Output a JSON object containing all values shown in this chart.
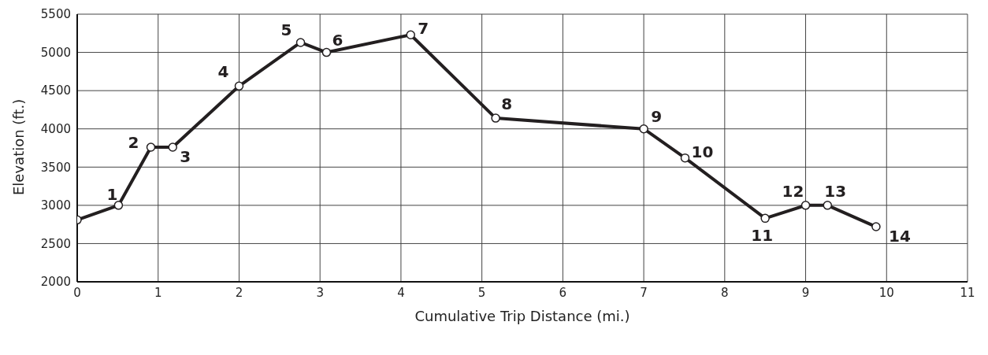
{
  "chart_data": {
    "type": "line",
    "xlabel": "Cumulative Trip Distance (mi.)",
    "ylabel": "Elevation (ft.)",
    "x": [
      0,
      0.51,
      0.91,
      1.18,
      2.0,
      2.76,
      3.08,
      4.12,
      5.17,
      7.0,
      7.51,
      8.5,
      9.0,
      9.27,
      9.87
    ],
    "series": [
      {
        "color": "#231f20",
        "values": [
          2810,
          3000,
          3760,
          3760,
          4560,
          5130,
          5000,
          5230,
          4140,
          4000,
          3620,
          2830,
          3000,
          3000,
          2720
        ]
      }
    ],
    "xlim": [
      0,
      11
    ],
    "xticks": [
      0,
      1,
      2,
      3,
      4,
      5,
      6,
      7,
      8,
      9,
      10,
      11
    ],
    "ylim": [
      2000,
      5500
    ],
    "yticks": [
      2000,
      2500,
      3000,
      3500,
      4000,
      4500,
      5000,
      5500
    ],
    "grid": true,
    "marker": "circle",
    "line_style": "solid",
    "legend": false,
    "annotations": [
      {
        "text": "1",
        "x": 0.51,
        "y": 3000
      },
      {
        "text": "2",
        "x": 0.91,
        "y": 3760
      },
      {
        "text": "3",
        "x": 1.18,
        "y": 3760
      },
      {
        "text": "4",
        "x": 2.0,
        "y": 4560
      },
      {
        "text": "5",
        "x": 2.76,
        "y": 5130
      },
      {
        "text": "6",
        "x": 3.08,
        "y": 5000
      },
      {
        "text": "7",
        "x": 4.12,
        "y": 5230
      },
      {
        "text": "8",
        "x": 5.17,
        "y": 4140
      },
      {
        "text": "9",
        "x": 7.0,
        "y": 4000
      },
      {
        "text": "10",
        "x": 7.51,
        "y": 3620
      },
      {
        "text": "11",
        "x": 8.5,
        "y": 2830
      },
      {
        "text": "12",
        "x": 9.0,
        "y": 3000
      },
      {
        "text": "13",
        "x": 9.27,
        "y": 3000
      },
      {
        "text": "14",
        "x": 9.87,
        "y": 2720
      }
    ]
  }
}
